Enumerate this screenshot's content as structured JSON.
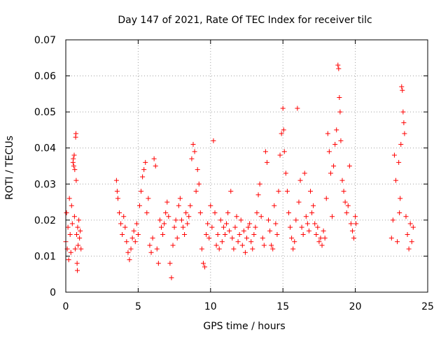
{
  "chart_data": {
    "type": "scatter",
    "title": "Day 147 of 2021, Rate Of TEC Index for receiver tilc",
    "xlabel": "GPS time / hours",
    "ylabel": "ROTI / TECUs",
    "xlim": [
      0,
      25
    ],
    "ylim": [
      0,
      0.07
    ],
    "x_ticks": [
      0,
      5,
      10,
      15,
      20,
      25
    ],
    "x_tick_labels": [
      "0",
      "5",
      "10",
      "15",
      "20",
      "25"
    ],
    "y_ticks": [
      0,
      0.01,
      0.02,
      0.03,
      0.04,
      0.05,
      0.06,
      0.07
    ],
    "y_tick_labels": [
      "0",
      "0.01",
      "0.02",
      "0.03",
      "0.04",
      "0.05",
      "0.06",
      "0.07"
    ],
    "grid": true,
    "marker": "plus",
    "series": [
      {
        "name": "ROTI",
        "color": "#ff0000",
        "points": [
          [
            0.0,
            0.014
          ],
          [
            0.05,
            0.022
          ],
          [
            0.1,
            0.012
          ],
          [
            0.15,
            0.018
          ],
          [
            0.2,
            0.009
          ],
          [
            0.25,
            0.026
          ],
          [
            0.3,
            0.016
          ],
          [
            0.35,
            0.011
          ],
          [
            0.4,
            0.024
          ],
          [
            0.45,
            0.019
          ],
          [
            0.5,
            0.036
          ],
          [
            0.52,
            0.037
          ],
          [
            0.55,
            0.035
          ],
          [
            0.58,
            0.038
          ],
          [
            0.6,
            0.021
          ],
          [
            0.62,
            0.034
          ],
          [
            0.65,
            0.012
          ],
          [
            0.68,
            0.043
          ],
          [
            0.7,
            0.044
          ],
          [
            0.72,
            0.031
          ],
          [
            0.75,
            0.016
          ],
          [
            0.78,
            0.008
          ],
          [
            0.8,
            0.006
          ],
          [
            0.82,
            0.018
          ],
          [
            0.85,
            0.013
          ],
          [
            0.9,
            0.02
          ],
          [
            0.95,
            0.015
          ],
          [
            1.0,
            0.017
          ],
          [
            1.05,
            0.012
          ],
          [
            3.5,
            0.031
          ],
          [
            3.55,
            0.028
          ],
          [
            3.6,
            0.026
          ],
          [
            3.7,
            0.022
          ],
          [
            3.8,
            0.019
          ],
          [
            3.9,
            0.016
          ],
          [
            4.0,
            0.021
          ],
          [
            4.1,
            0.018
          ],
          [
            4.2,
            0.014
          ],
          [
            4.3,
            0.011
          ],
          [
            4.4,
            0.009
          ],
          [
            4.5,
            0.012
          ],
          [
            4.6,
            0.015
          ],
          [
            4.7,
            0.017
          ],
          [
            4.8,
            0.014
          ],
          [
            4.9,
            0.019
          ],
          [
            5.0,
            0.016
          ],
          [
            5.1,
            0.024
          ],
          [
            5.2,
            0.028
          ],
          [
            5.3,
            0.032
          ],
          [
            5.4,
            0.034
          ],
          [
            5.5,
            0.036
          ],
          [
            5.6,
            0.022
          ],
          [
            5.7,
            0.026
          ],
          [
            5.8,
            0.013
          ],
          [
            5.9,
            0.011
          ],
          [
            6.0,
            0.015
          ],
          [
            6.1,
            0.037
          ],
          [
            6.2,
            0.035
          ],
          [
            6.3,
            0.012
          ],
          [
            6.4,
            0.008
          ],
          [
            6.5,
            0.02
          ],
          [
            6.6,
            0.018
          ],
          [
            6.7,
            0.016
          ],
          [
            6.8,
            0.019
          ],
          [
            6.9,
            0.022
          ],
          [
            7.0,
            0.025
          ],
          [
            7.1,
            0.021
          ],
          [
            7.2,
            0.008
          ],
          [
            7.3,
            0.004
          ],
          [
            7.4,
            0.013
          ],
          [
            7.5,
            0.018
          ],
          [
            7.6,
            0.02
          ],
          [
            7.7,
            0.015
          ],
          [
            7.8,
            0.024
          ],
          [
            7.9,
            0.026
          ],
          [
            8.0,
            0.02
          ],
          [
            8.1,
            0.018
          ],
          [
            8.2,
            0.016
          ],
          [
            8.3,
            0.022
          ],
          [
            8.4,
            0.019
          ],
          [
            8.5,
            0.021
          ],
          [
            8.6,
            0.024
          ],
          [
            8.7,
            0.037
          ],
          [
            8.8,
            0.041
          ],
          [
            8.9,
            0.039
          ],
          [
            9.0,
            0.028
          ],
          [
            9.1,
            0.034
          ],
          [
            9.2,
            0.03
          ],
          [
            9.3,
            0.022
          ],
          [
            9.4,
            0.012
          ],
          [
            9.5,
            0.008
          ],
          [
            9.6,
            0.007
          ],
          [
            9.7,
            0.016
          ],
          [
            9.8,
            0.019
          ],
          [
            9.9,
            0.015
          ],
          [
            10.0,
            0.024
          ],
          [
            10.1,
            0.018
          ],
          [
            10.2,
            0.042
          ],
          [
            10.3,
            0.022
          ],
          [
            10.4,
            0.013
          ],
          [
            10.5,
            0.016
          ],
          [
            10.6,
            0.012
          ],
          [
            10.7,
            0.02
          ],
          [
            10.8,
            0.014
          ],
          [
            10.9,
            0.018
          ],
          [
            11.0,
            0.016
          ],
          [
            11.1,
            0.019
          ],
          [
            11.2,
            0.022
          ],
          [
            11.3,
            0.017
          ],
          [
            11.4,
            0.028
          ],
          [
            11.5,
            0.015
          ],
          [
            11.6,
            0.012
          ],
          [
            11.7,
            0.018
          ],
          [
            11.8,
            0.021
          ],
          [
            11.9,
            0.014
          ],
          [
            12.0,
            0.016
          ],
          [
            12.1,
            0.02
          ],
          [
            12.2,
            0.013
          ],
          [
            12.3,
            0.017
          ],
          [
            12.4,
            0.011
          ],
          [
            12.5,
            0.015
          ],
          [
            12.6,
            0.018
          ],
          [
            12.7,
            0.019
          ],
          [
            12.8,
            0.014
          ],
          [
            12.9,
            0.012
          ],
          [
            13.0,
            0.016
          ],
          [
            13.1,
            0.018
          ],
          [
            13.2,
            0.022
          ],
          [
            13.3,
            0.027
          ],
          [
            13.4,
            0.03
          ],
          [
            13.5,
            0.021
          ],
          [
            13.6,
            0.015
          ],
          [
            13.7,
            0.013
          ],
          [
            13.8,
            0.039
          ],
          [
            13.9,
            0.036
          ],
          [
            14.0,
            0.02
          ],
          [
            14.1,
            0.017
          ],
          [
            14.2,
            0.013
          ],
          [
            14.3,
            0.012
          ],
          [
            14.4,
            0.024
          ],
          [
            14.5,
            0.019
          ],
          [
            14.6,
            0.016
          ],
          [
            14.7,
            0.028
          ],
          [
            14.8,
            0.038
          ],
          [
            14.9,
            0.044
          ],
          [
            15.0,
            0.051
          ],
          [
            15.05,
            0.045
          ],
          [
            15.1,
            0.039
          ],
          [
            15.2,
            0.033
          ],
          [
            15.3,
            0.028
          ],
          [
            15.4,
            0.022
          ],
          [
            15.5,
            0.018
          ],
          [
            15.6,
            0.015
          ],
          [
            15.7,
            0.012
          ],
          [
            15.8,
            0.014
          ],
          [
            15.9,
            0.02
          ],
          [
            16.0,
            0.051
          ],
          [
            16.1,
            0.025
          ],
          [
            16.2,
            0.031
          ],
          [
            16.3,
            0.018
          ],
          [
            16.4,
            0.016
          ],
          [
            16.5,
            0.033
          ],
          [
            16.6,
            0.021
          ],
          [
            16.7,
            0.019
          ],
          [
            16.8,
            0.017
          ],
          [
            16.9,
            0.028
          ],
          [
            17.0,
            0.022
          ],
          [
            17.1,
            0.024
          ],
          [
            17.2,
            0.019
          ],
          [
            17.3,
            0.016
          ],
          [
            17.4,
            0.018
          ],
          [
            17.5,
            0.014
          ],
          [
            17.6,
            0.015
          ],
          [
            17.7,
            0.013
          ],
          [
            17.8,
            0.017
          ],
          [
            17.9,
            0.015
          ],
          [
            18.0,
            0.026
          ],
          [
            18.1,
            0.044
          ],
          [
            18.2,
            0.039
          ],
          [
            18.3,
            0.033
          ],
          [
            18.4,
            0.021
          ],
          [
            18.5,
            0.035
          ],
          [
            18.6,
            0.041
          ],
          [
            18.7,
            0.045
          ],
          [
            18.8,
            0.063
          ],
          [
            18.85,
            0.062
          ],
          [
            18.9,
            0.054
          ],
          [
            18.95,
            0.05
          ],
          [
            19.0,
            0.042
          ],
          [
            19.1,
            0.031
          ],
          [
            19.2,
            0.028
          ],
          [
            19.3,
            0.025
          ],
          [
            19.4,
            0.022
          ],
          [
            19.5,
            0.024
          ],
          [
            19.6,
            0.035
          ],
          [
            19.7,
            0.019
          ],
          [
            19.8,
            0.017
          ],
          [
            19.9,
            0.015
          ],
          [
            20.0,
            0.021
          ],
          [
            20.05,
            0.019
          ],
          [
            22.5,
            0.015
          ],
          [
            22.6,
            0.02
          ],
          [
            22.7,
            0.038
          ],
          [
            22.8,
            0.031
          ],
          [
            22.9,
            0.014
          ],
          [
            23.0,
            0.036
          ],
          [
            23.05,
            0.022
          ],
          [
            23.1,
            0.026
          ],
          [
            23.15,
            0.041
          ],
          [
            23.2,
            0.057
          ],
          [
            23.25,
            0.056
          ],
          [
            23.3,
            0.05
          ],
          [
            23.35,
            0.047
          ],
          [
            23.4,
            0.044
          ],
          [
            23.5,
            0.021
          ],
          [
            23.6,
            0.016
          ],
          [
            23.7,
            0.012
          ],
          [
            23.8,
            0.019
          ],
          [
            23.9,
            0.014
          ],
          [
            24.0,
            0.018
          ]
        ]
      }
    ]
  }
}
